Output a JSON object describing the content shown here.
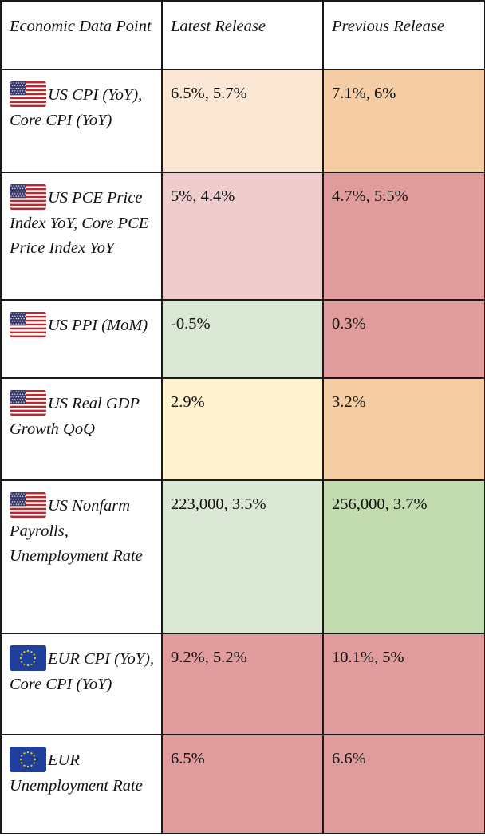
{
  "header": {
    "col1": "Economic Data Point",
    "col2": "Latest Release",
    "col3": "Previous Release"
  },
  "colors": {
    "light_orange": "#fbe6d3",
    "orange": "#f4cda4",
    "light_red": "#efcdcd",
    "red": "#e09c9c",
    "light_green": "#dce8d6",
    "green": "#c2dcb0",
    "light_yellow": "#fff2cf"
  },
  "rows": [
    {
      "flag": "us-flag-icon",
      "label": "US CPI (YoY), Core CPI (YoY)",
      "latest": "6.5%, 5.7%",
      "previous": "7.1%, 6%",
      "latest_color": "light_orange",
      "previous_color": "orange"
    },
    {
      "flag": "us-flag-icon",
      "label": "US PCE Price Index YoY, Core PCE Price Index YoY",
      "latest": "5%, 4.4%",
      "previous": "4.7%, 5.5%",
      "latest_color": "light_red",
      "previous_color": "red"
    },
    {
      "flag": "us-flag-icon",
      "label": "US PPI (MoM)",
      "latest": "-0.5%",
      "previous": "0.3%",
      "latest_color": "light_green",
      "previous_color": "red"
    },
    {
      "flag": "us-flag-icon",
      "label": "US Real GDP Growth QoQ",
      "latest": "2.9%",
      "previous": "3.2%",
      "latest_color": "light_yellow",
      "previous_color": "orange"
    },
    {
      "flag": "us-flag-icon",
      "label": "US Nonfarm Payrolls, Unemployment Rate",
      "latest": "223,000, 3.5%",
      "previous": "256,000, 3.7%",
      "latest_color": "light_green",
      "previous_color": "green"
    },
    {
      "flag": "eu-flag-icon",
      "label": "EUR CPI (YoY), Core CPI (YoY)",
      "latest": "9.2%, 5.2%",
      "previous": "10.1%, 5%",
      "latest_color": "red",
      "previous_color": "red"
    },
    {
      "flag": "eu-flag-icon",
      "label": "EUR Unemployment Rate",
      "latest": "6.5%",
      "previous": "6.6%",
      "latest_color": "red",
      "previous_color": "red"
    }
  ]
}
